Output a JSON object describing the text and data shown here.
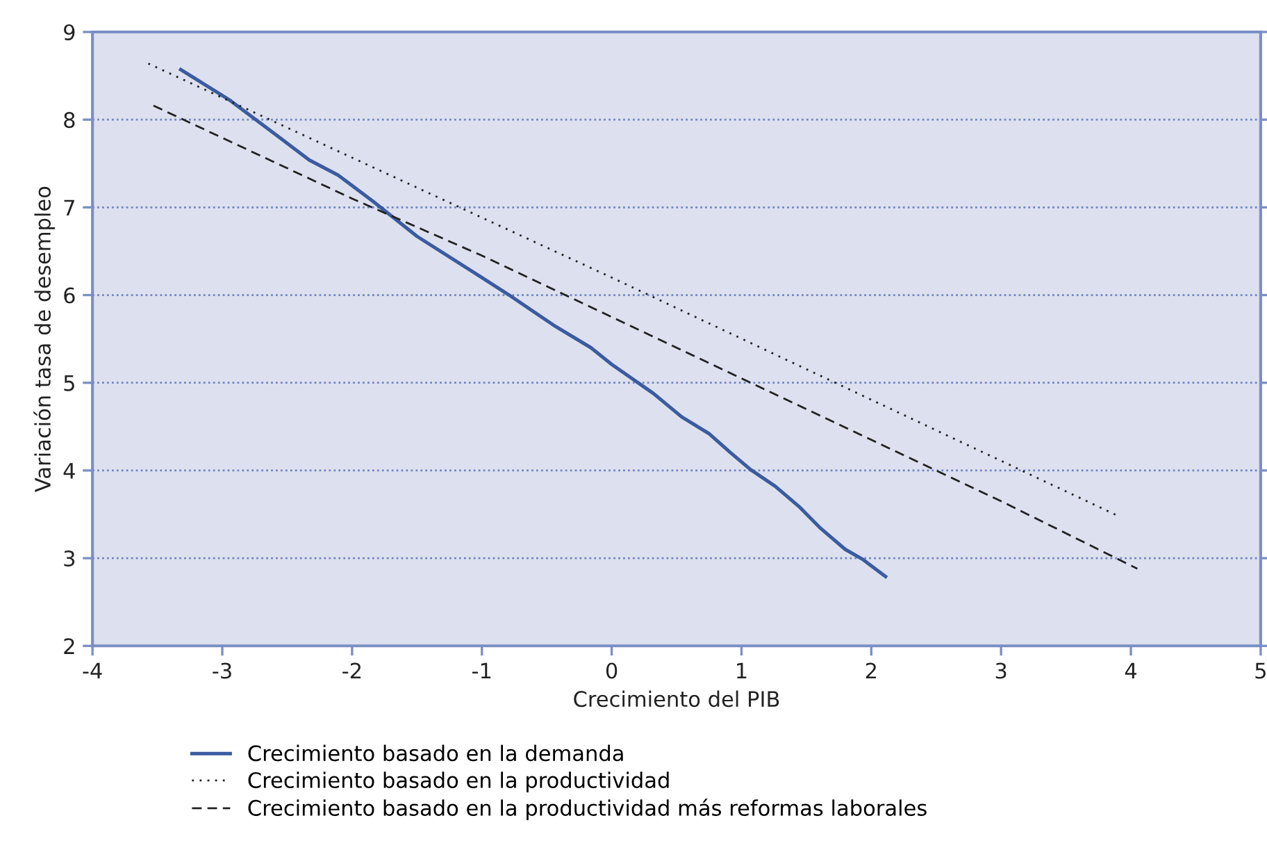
{
  "chart_data": {
    "type": "line",
    "xlabel": "Crecimiento del PIB",
    "ylabel": "Variación tasa de desempleo",
    "xlim": [
      -4,
      5
    ],
    "xticks": [
      -4,
      -3,
      -2,
      -1,
      0,
      1,
      2,
      3,
      4,
      5
    ],
    "ylim": [
      2,
      9
    ],
    "yticks": [
      2,
      3,
      4,
      5,
      6,
      7,
      8,
      9
    ],
    "grid": "y",
    "legend": "bottom",
    "marker": "none",
    "series": [
      {
        "name": "Crecimiento basado en la demanda",
        "color": "#3a5ba0",
        "line_style": "solid",
        "x": [
          -3.32,
          -2.94,
          -2.57,
          -2.33,
          -2.11,
          -1.84,
          -1.5,
          -1.0,
          -0.79,
          -0.43,
          -0.16,
          0.0,
          0.32,
          0.54,
          0.75,
          0.91,
          1.07,
          1.26,
          1.45,
          1.61,
          1.8,
          1.93,
          2.11
        ],
        "values": [
          8.57,
          8.22,
          7.81,
          7.54,
          7.37,
          7.07,
          6.67,
          6.2,
          6.0,
          5.64,
          5.4,
          5.21,
          4.88,
          4.61,
          4.42,
          4.21,
          4.01,
          3.82,
          3.58,
          3.34,
          3.1,
          2.99,
          2.79
        ]
      },
      {
        "name": "Crecimiento basado en la productividad",
        "color": "#222222",
        "line_style": "dotted",
        "x": [
          -3.57,
          0.0,
          3.89
        ],
        "values": [
          8.64,
          6.2,
          3.49
        ]
      },
      {
        "name": "Crecimiento basado en la productividad más reformas laborales",
        "color": "#222222",
        "line_style": "dashed",
        "x": [
          -3.53,
          -2.0,
          -1.0,
          0.0,
          1.0,
          2.0,
          3.0,
          4.05
        ],
        "values": [
          8.16,
          7.1,
          6.45,
          5.75,
          5.05,
          4.35,
          3.65,
          2.88
        ]
      }
    ]
  }
}
